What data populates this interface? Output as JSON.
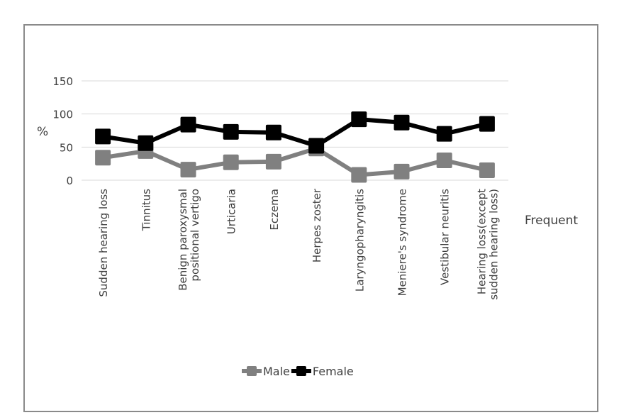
{
  "chart_data": {
    "type": "line",
    "ylabel": "%",
    "xlabel": "Frequent",
    "ylim": [
      0,
      150
    ],
    "yticks": [
      0,
      50,
      100,
      150
    ],
    "grid": true,
    "legend_position": "bottom",
    "categories": [
      [
        "Sudden hearing loss"
      ],
      [
        "Tinnitus"
      ],
      [
        "Benign paroxysmal",
        "positional vertigo"
      ],
      [
        "Urticaria"
      ],
      [
        "Eczema"
      ],
      [
        "Herpes zoster"
      ],
      [
        "Laryngopharyngitis"
      ],
      [
        "Meniere's syndrome"
      ],
      [
        "Vestibular neuritis"
      ],
      [
        "Hearing loss(except",
        "sudden hearing loss)"
      ]
    ],
    "series": [
      {
        "name": "Male",
        "color": "#808080",
        "values": [
          34,
          44,
          16,
          27,
          28,
          48,
          8,
          13,
          30,
          15
        ]
      },
      {
        "name": "Female",
        "color": "#000000",
        "values": [
          66,
          56,
          84,
          73,
          72,
          52,
          92,
          87,
          70,
          85
        ]
      }
    ]
  }
}
